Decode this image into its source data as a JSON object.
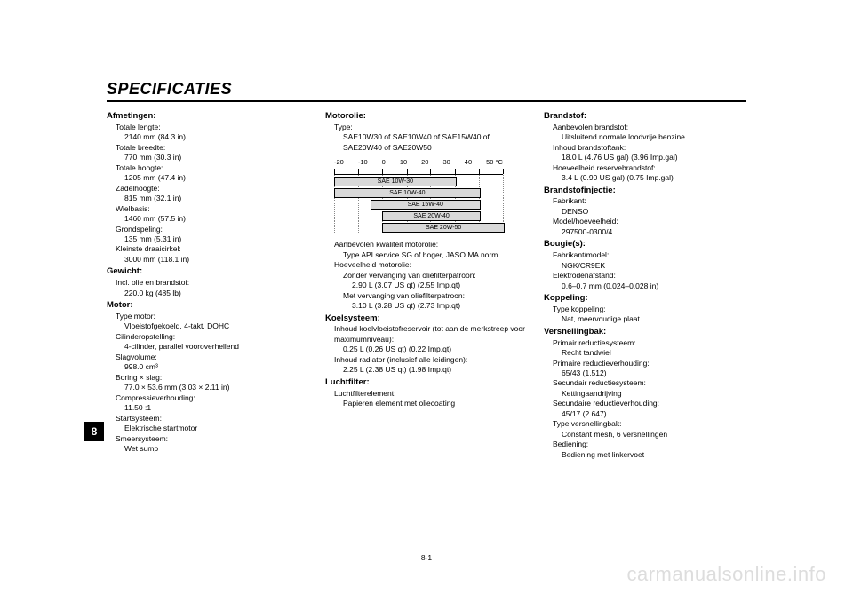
{
  "title": "SPECIFICATIES",
  "side_tab": "8",
  "page_number": "8-1",
  "watermark": "carmanualsonline.info",
  "col1": {
    "afmetingen": {
      "head": "Afmetingen:",
      "items": [
        {
          "l": "Totale lengte:",
          "v": "2140 mm (84.3 in)"
        },
        {
          "l": "Totale breedte:",
          "v": "770 mm (30.3 in)"
        },
        {
          "l": "Totale hoogte:",
          "v": "1205 mm (47.4 in)"
        },
        {
          "l": "Zadelhoogte:",
          "v": "815 mm (32.1 in)"
        },
        {
          "l": "Wielbasis:",
          "v": "1460 mm (57.5 in)"
        },
        {
          "l": "Grondspeling:",
          "v": "135 mm (5.31 in)"
        },
        {
          "l": "Kleinste draaicirkel:",
          "v": "3000 mm (118.1 in)"
        }
      ]
    },
    "gewicht": {
      "head": "Gewicht:",
      "items": [
        {
          "l": "Incl. olie en brandstof:",
          "v": "220.0 kg (485 lb)"
        }
      ]
    },
    "motor": {
      "head": "Motor:",
      "items": [
        {
          "l": "Type motor:",
          "v": "Vloeistofgekoeld, 4-takt, DOHC"
        },
        {
          "l": "Cilinderopstelling:",
          "v": "4-cilinder, parallel vooroverhellend"
        },
        {
          "l": "Slagvolume:",
          "v": "998.0 cm³"
        },
        {
          "l": "Boring × slag:",
          "v": "77.0 × 53.6 mm (3.03 × 2.11 in)"
        },
        {
          "l": "Compressieverhouding:",
          "v": "11.50 :1"
        },
        {
          "l": "Startsysteem:",
          "v": "Elektrische startmotor"
        },
        {
          "l": "Smeersysteem:",
          "v": "Wet sump"
        }
      ]
    }
  },
  "col2": {
    "motorolie": {
      "head": "Motorolie:",
      "type_lbl": "Type:",
      "type_val": "SAE10W30 of SAE10W40 of SAE15W40 of SAE20W40 of SAE20W50",
      "chart": {
        "scale_labels": [
          "-20",
          "-10",
          "0",
          "10",
          "20",
          "30",
          "40",
          "50 °C"
        ],
        "tick_positions_pct": [
          0,
          14.3,
          28.6,
          42.9,
          57.1,
          71.4,
          85.7,
          100
        ],
        "rows": [
          {
            "label": "SAE 10W-30",
            "left_pct": 0,
            "right_pct": 71.4
          },
          {
            "label": "SAE 10W-40",
            "left_pct": 0,
            "right_pct": 85.7
          },
          {
            "label": "SAE 15W-40",
            "left_pct": 21.4,
            "right_pct": 85.7
          },
          {
            "label": "SAE 20W-40",
            "left_pct": 28.6,
            "right_pct": 85.7
          },
          {
            "label": "SAE 20W-50",
            "left_pct": 28.6,
            "right_pct": 100
          }
        ]
      },
      "rest": [
        {
          "l": "Aanbevolen kwaliteit motorolie:",
          "v": "Type API service SG of hoger, JASO MA norm"
        },
        {
          "l": "Hoeveelheid motorolie:",
          "v": null
        },
        {
          "l2": "Zonder vervanging van oliefilterpatroon:",
          "v": "2.90 L (3.07 US qt) (2.55 Imp.qt)"
        },
        {
          "l2": "Met vervanging van oliefilterpatroon:",
          "v": "3.10 L (3.28 US qt) (2.73 Imp.qt)"
        }
      ]
    },
    "koelsysteem": {
      "head": "Koelsysteem:",
      "items": [
        {
          "l": "Inhoud koelvloeistofreservoir (tot aan de merkstreep voor maximumniveau):",
          "v": "0.25 L (0.26 US qt) (0.22 Imp.qt)"
        },
        {
          "l": "Inhoud radiator (inclusief alle leidingen):",
          "v": "2.25 L (2.38 US qt) (1.98 Imp.qt)"
        }
      ]
    },
    "luchtfilter": {
      "head": "Luchtfilter:",
      "items": [
        {
          "l": "Luchtfilterelement:",
          "v": "Papieren element met oliecoating"
        }
      ]
    }
  },
  "col3": {
    "brandstof": {
      "head": "Brandstof:",
      "items": [
        {
          "l": "Aanbevolen brandstof:",
          "v": "Uitsluitend normale loodvrije benzine"
        },
        {
          "l": "Inhoud brandstoftank:",
          "v": "18.0 L (4.76 US gal) (3.96 Imp.gal)"
        },
        {
          "l": "Hoeveelheid reservebrandstof:",
          "v": "3.4 L (0.90 US gal) (0.75 Imp.gal)"
        }
      ]
    },
    "injectie": {
      "head": "Brandstofinjectie:",
      "items": [
        {
          "l": "Fabrikant:",
          "v": "DENSO"
        },
        {
          "l": "Model/hoeveelheid:",
          "v": "297500-0300/4"
        }
      ]
    },
    "bougie": {
      "head": "Bougie(s):",
      "items": [
        {
          "l": "Fabrikant/model:",
          "v": "NGK/CR9EK"
        },
        {
          "l": "Elektrodenafstand:",
          "v": "0.6–0.7 mm (0.024–0.028 in)"
        }
      ]
    },
    "koppeling": {
      "head": "Koppeling:",
      "items": [
        {
          "l": "Type koppeling:",
          "v": "Nat, meervoudige plaat"
        }
      ]
    },
    "versnellingbak": {
      "head": "Versnellingbak:",
      "items": [
        {
          "l": "Primair reductiesysteem:",
          "v": "Recht tandwiel"
        },
        {
          "l": "Primaire reductieverhouding:",
          "v": "65/43 (1.512)"
        },
        {
          "l": "Secundair reductiesysteem:",
          "v": "Kettingaandrijving"
        },
        {
          "l": "Secundaire reductieverhouding:",
          "v": "45/17 (2.647)"
        },
        {
          "l": "Type versnellingbak:",
          "v": "Constant mesh, 6 versnellingen"
        },
        {
          "l": "Bediening:",
          "v": "Bediening met linkervoet"
        }
      ]
    }
  }
}
